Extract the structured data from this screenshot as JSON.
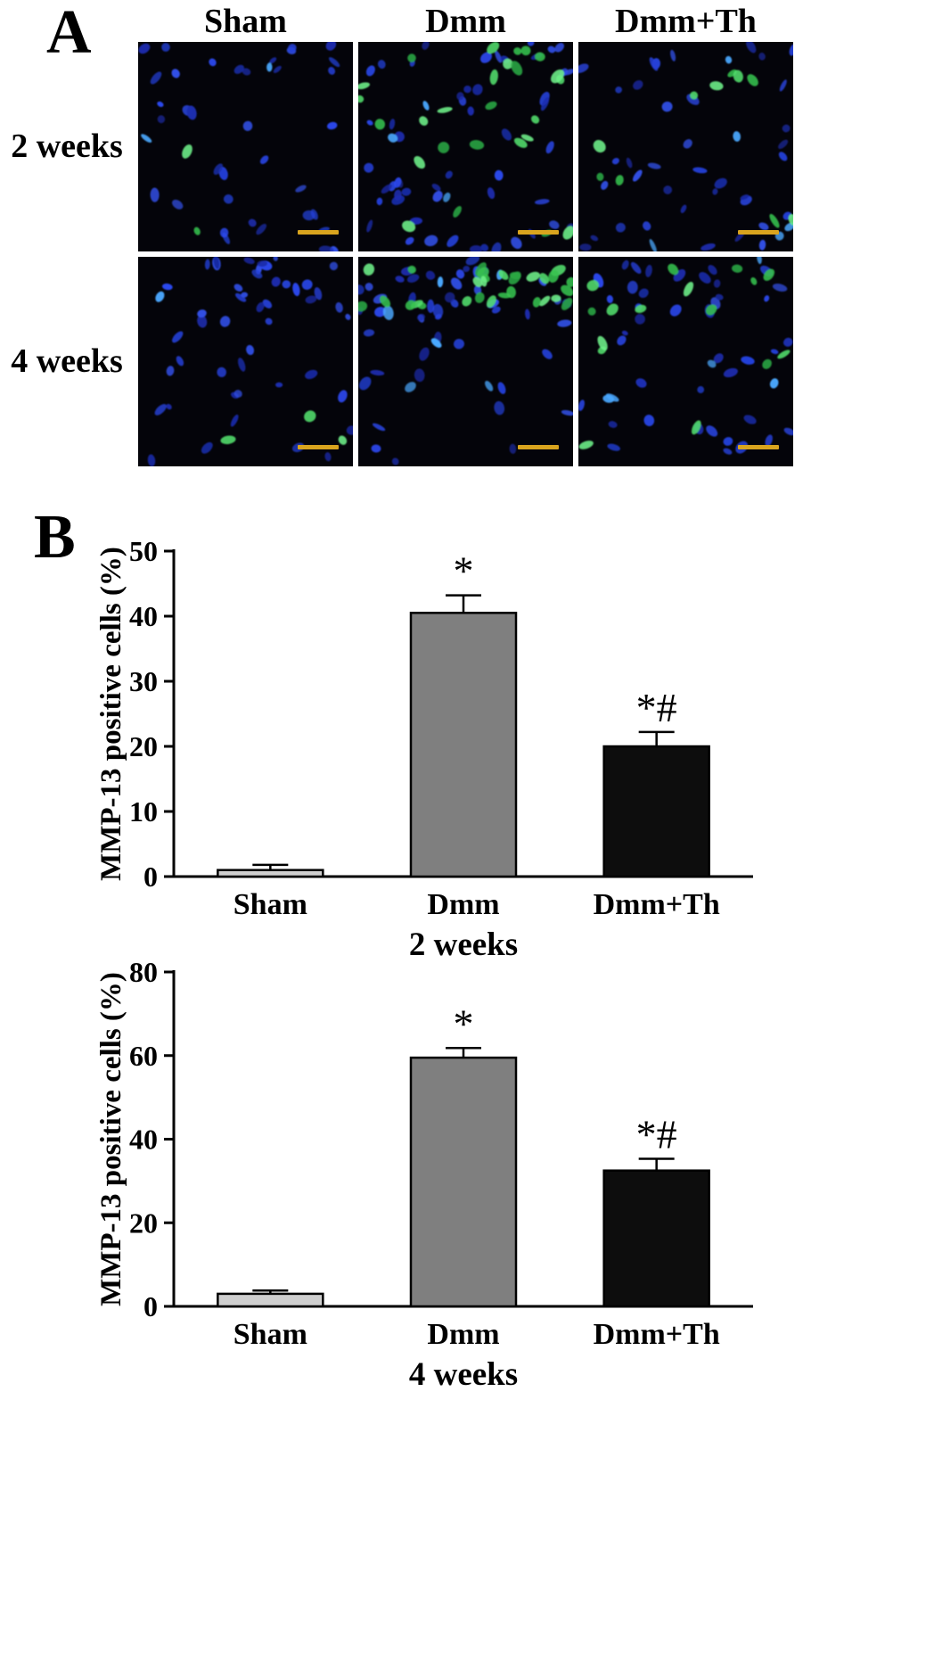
{
  "figure": {
    "panel_a": {
      "label": "A",
      "column_headers": [
        "Sham",
        "Dmm",
        "Dmm+Th"
      ],
      "row_labels": [
        "2 weeks",
        "4 weeks"
      ],
      "stain_colors": {
        "nuclei_blue": "#2742d8",
        "positive_green": "#3ec957",
        "scale_bar": "#d9a41e"
      },
      "panels": [
        {
          "id": "sham-2w",
          "week": "2 weeks",
          "group": "Sham",
          "blue_cells": 38,
          "green_cells": 2,
          "green_zone": "scatter",
          "blue_zone": "uniform"
        },
        {
          "id": "dmm-2w",
          "week": "2 weeks",
          "group": "Dmm",
          "blue_cells": 55,
          "green_cells": 26,
          "green_zone": "upper",
          "blue_zone": "top"
        },
        {
          "id": "dmmth-2w",
          "week": "2 weeks",
          "group": "Dmm+Th",
          "blue_cells": 42,
          "green_cells": 10,
          "green_zone": "scatter",
          "blue_zone": "uniform"
        },
        {
          "id": "sham-4w",
          "week": "4 weeks",
          "group": "Sham",
          "blue_cells": 48,
          "green_cells": 3,
          "green_zone": "lower",
          "blue_zone": "top"
        },
        {
          "id": "dmm-4w",
          "week": "4 weeks",
          "group": "Dmm",
          "blue_cells": 52,
          "green_cells": 30,
          "green_zone": "top-band",
          "blue_zone": "top"
        },
        {
          "id": "dmmth-4w",
          "week": "4 weeks",
          "group": "Dmm+Th",
          "blue_cells": 46,
          "green_cells": 16,
          "green_zone": "upper",
          "blue_zone": "top"
        }
      ]
    },
    "panel_b": {
      "label": "B"
    }
  },
  "chart_data": [
    {
      "type": "bar",
      "title": "",
      "categories": [
        "Sham",
        "Dmm",
        "Dmm+Th"
      ],
      "values": [
        1,
        40.5,
        20
      ],
      "errors": [
        0.8,
        2.7,
        2.2
      ],
      "annotations": [
        "",
        "*",
        "*#"
      ],
      "bar_colors": [
        "#cfcfcf",
        "#7f7f7f",
        "#0d0d0d"
      ],
      "ylabel": "MMP-13 positive cells (%)",
      "xlabel": "2 weeks",
      "ylim": [
        0,
        50
      ],
      "yticks": [
        0,
        10,
        20,
        30,
        40,
        50
      ],
      "grid": false,
      "legend": "none"
    },
    {
      "type": "bar",
      "title": "",
      "categories": [
        "Sham",
        "Dmm",
        "Dmm+Th"
      ],
      "values": [
        3,
        59.5,
        32.5
      ],
      "errors": [
        0.8,
        2.3,
        2.8
      ],
      "annotations": [
        "",
        "*",
        "*#"
      ],
      "bar_colors": [
        "#cfcfcf",
        "#7f7f7f",
        "#0d0d0d"
      ],
      "ylabel": "MMP-13 positive cells (%)",
      "xlabel": "4 weeks",
      "ylim": [
        0,
        80
      ],
      "yticks": [
        0,
        20,
        40,
        60,
        80
      ],
      "grid": false,
      "legend": "none"
    }
  ]
}
